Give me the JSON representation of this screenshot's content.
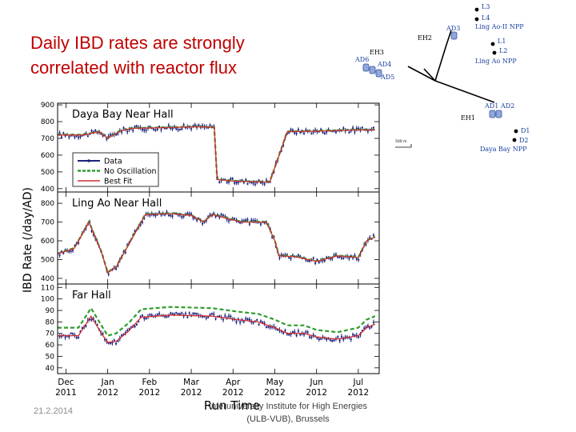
{
  "slide": {
    "title_line1": "Daily IBD rates are strongly",
    "title_line2": "correlated with reactor flux",
    "footer_date": "21.2.2014",
    "footer_institute_line1": "Interuniversity Institute for High Energies",
    "footer_institute_line2": "(ULB-VUB), Brussels"
  },
  "map": {
    "hall_labels": [
      "EH2",
      "EH3",
      "EH1"
    ],
    "detector_labels": [
      "AD3",
      "AD6",
      "AD4",
      "AD5",
      "AD1",
      "AD2"
    ],
    "core_labels": [
      "L3",
      "L4",
      "L1",
      "L2",
      "D1",
      "D2"
    ],
    "site_labels": [
      "Ling Ao-II NPP",
      "Ling Ao NPP",
      "Daya Bay NPP"
    ],
    "scale_label": "500 m",
    "colors": {
      "detector": "#8fa8e0",
      "core": "#1a3fa0",
      "road": "#000000"
    }
  },
  "chart_data": {
    "type": "line",
    "ylabel": "IBD Rate (/day/AD)",
    "xlabel": "Run Time",
    "x_ticks": [
      {
        "month": "Dec",
        "year": "2011",
        "t": 0
      },
      {
        "month": "Jan",
        "year": "2012",
        "t": 1
      },
      {
        "month": "Feb",
        "year": "2012",
        "t": 2
      },
      {
        "month": "Mar",
        "year": "2012",
        "t": 3
      },
      {
        "month": "Apr",
        "year": "2012",
        "t": 4
      },
      {
        "month": "May",
        "year": "2012",
        "t": 5
      },
      {
        "month": "Jun",
        "year": "2012",
        "t": 6
      },
      {
        "month": "Jul",
        "year": "2012",
        "t": 7
      }
    ],
    "xlim": [
      -0.2,
      7.5
    ],
    "legend": {
      "placement": "inside-lower-left of top panel",
      "entries": [
        {
          "name": "Data",
          "color": "#1a237e",
          "style": "points"
        },
        {
          "name": "No Oscillation",
          "color": "#2e9d2e",
          "style": "dashed"
        },
        {
          "name": "Best Fit",
          "color": "#d32f2f",
          "style": "solid"
        }
      ]
    },
    "panels": [
      {
        "name": "Daya Bay Near Hall",
        "ylim": [
          380,
          910
        ],
        "yticks": [
          400,
          500,
          600,
          700,
          800,
          900
        ],
        "best_fit": [
          [
            -0.2,
            720
          ],
          [
            0.4,
            720
          ],
          [
            0.8,
            740
          ],
          [
            1.0,
            700
          ],
          [
            1.3,
            745
          ],
          [
            1.6,
            760
          ],
          [
            2.0,
            762
          ],
          [
            2.6,
            765
          ],
          [
            3.1,
            770
          ],
          [
            3.55,
            765
          ],
          [
            3.62,
            455
          ],
          [
            4.0,
            445
          ],
          [
            4.6,
            440
          ],
          [
            4.88,
            440
          ],
          [
            5.05,
            560
          ],
          [
            5.3,
            740
          ],
          [
            5.7,
            742
          ],
          [
            6.3,
            745
          ],
          [
            6.9,
            750
          ],
          [
            7.4,
            750
          ]
        ],
        "no_oscillation": [
          [
            -0.2,
            722
          ],
          [
            0.4,
            722
          ],
          [
            0.8,
            742
          ],
          [
            1.0,
            702
          ],
          [
            1.3,
            747
          ],
          [
            1.6,
            762
          ],
          [
            2.0,
            764
          ],
          [
            2.6,
            767
          ],
          [
            3.1,
            772
          ],
          [
            3.55,
            767
          ],
          [
            3.62,
            457
          ],
          [
            4.0,
            447
          ],
          [
            4.6,
            442
          ],
          [
            4.88,
            442
          ],
          [
            5.05,
            562
          ],
          [
            5.3,
            742
          ],
          [
            5.7,
            744
          ],
          [
            6.3,
            747
          ],
          [
            6.9,
            752
          ],
          [
            7.4,
            752
          ]
        ]
      },
      {
        "name": "Ling Ao Near Hall",
        "ylim": [
          370,
          860
        ],
        "yticks": [
          400,
          500,
          600,
          700,
          800
        ],
        "best_fit": [
          [
            -0.2,
            530
          ],
          [
            0.2,
            560
          ],
          [
            0.55,
            700
          ],
          [
            0.85,
            540
          ],
          [
            1.0,
            430
          ],
          [
            1.2,
            460
          ],
          [
            1.55,
            600
          ],
          [
            1.9,
            740
          ],
          [
            2.5,
            745
          ],
          [
            3.0,
            735
          ],
          [
            3.3,
            700
          ],
          [
            3.5,
            740
          ],
          [
            4.2,
            700
          ],
          [
            4.8,
            700
          ],
          [
            5.0,
            600
          ],
          [
            5.1,
            520
          ],
          [
            5.5,
            515
          ],
          [
            6.0,
            490
          ],
          [
            6.5,
            520
          ],
          [
            7.0,
            510
          ],
          [
            7.2,
            600
          ],
          [
            7.4,
            620
          ]
        ],
        "no_oscillation": [
          [
            -0.2,
            532
          ],
          [
            0.2,
            562
          ],
          [
            0.55,
            702
          ],
          [
            0.85,
            542
          ],
          [
            1.0,
            432
          ],
          [
            1.2,
            462
          ],
          [
            1.55,
            602
          ],
          [
            1.9,
            742
          ],
          [
            2.5,
            747
          ],
          [
            3.0,
            737
          ],
          [
            3.3,
            702
          ],
          [
            3.5,
            742
          ],
          [
            4.2,
            702
          ],
          [
            4.8,
            702
          ],
          [
            5.0,
            602
          ],
          [
            5.1,
            522
          ],
          [
            5.5,
            517
          ],
          [
            6.0,
            492
          ],
          [
            6.5,
            522
          ],
          [
            7.0,
            512
          ],
          [
            7.2,
            602
          ],
          [
            7.4,
            622
          ]
        ]
      },
      {
        "name": "Far Hall",
        "ylim": [
          35,
          113
        ],
        "yticks": [
          40,
          50,
          60,
          70,
          80,
          90,
          100,
          110
        ],
        "best_fit": [
          [
            -0.2,
            68
          ],
          [
            0.3,
            68
          ],
          [
            0.6,
            85
          ],
          [
            0.85,
            70
          ],
          [
            1.0,
            62
          ],
          [
            1.2,
            63
          ],
          [
            1.5,
            72
          ],
          [
            1.8,
            84
          ],
          [
            2.5,
            86
          ],
          [
            3.5,
            85
          ],
          [
            4.1,
            82
          ],
          [
            4.6,
            80
          ],
          [
            5.0,
            75
          ],
          [
            5.3,
            70
          ],
          [
            5.7,
            70
          ],
          [
            6.0,
            67
          ],
          [
            6.5,
            65
          ],
          [
            7.0,
            68
          ],
          [
            7.2,
            75
          ],
          [
            7.4,
            78
          ]
        ],
        "no_oscillation": [
          [
            -0.2,
            75
          ],
          [
            0.3,
            75
          ],
          [
            0.6,
            92
          ],
          [
            0.85,
            77
          ],
          [
            1.0,
            68
          ],
          [
            1.2,
            70
          ],
          [
            1.5,
            79
          ],
          [
            1.8,
            91
          ],
          [
            2.5,
            93
          ],
          [
            3.5,
            92
          ],
          [
            4.1,
            89
          ],
          [
            4.6,
            87
          ],
          [
            5.0,
            82
          ],
          [
            5.3,
            77
          ],
          [
            5.7,
            77
          ],
          [
            6.0,
            73
          ],
          [
            6.5,
            71
          ],
          [
            7.0,
            75
          ],
          [
            7.2,
            82
          ],
          [
            7.4,
            85
          ]
        ]
      }
    ]
  }
}
